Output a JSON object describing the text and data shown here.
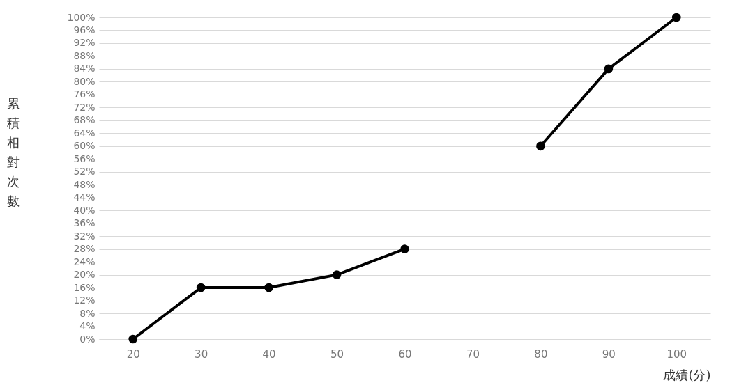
{
  "chart_data": {
    "type": "line",
    "xlabel": "成績(分)",
    "ylabel": "累積相對次數",
    "categories": [
      "20",
      "30",
      "40",
      "50",
      "60",
      "70",
      "80",
      "90",
      "100"
    ],
    "series": [
      {
        "color": "#000000",
        "values": [
          0,
          16,
          16,
          20,
          28,
          null,
          60,
          84,
          100
        ]
      }
    ],
    "ylim": [
      0,
      100
    ],
    "yticks": [
      {
        "value": 0,
        "label": "0%"
      },
      {
        "value": 4,
        "label": "4%"
      },
      {
        "value": 8,
        "label": "8%"
      },
      {
        "value": 12,
        "label": "12%"
      },
      {
        "value": 16,
        "label": "16%"
      },
      {
        "value": 20,
        "label": "20%"
      },
      {
        "value": 24,
        "label": "24%"
      },
      {
        "value": 28,
        "label": "28%"
      },
      {
        "value": 32,
        "label": "32%"
      },
      {
        "value": 36,
        "label": "36%"
      },
      {
        "value": 40,
        "label": "40%"
      },
      {
        "value": 44,
        "label": "44%"
      },
      {
        "value": 48,
        "label": "48%"
      },
      {
        "value": 52,
        "label": "52%"
      },
      {
        "value": 56,
        "label": "56%"
      },
      {
        "value": 60,
        "label": "60%"
      },
      {
        "value": 64,
        "label": "64%"
      },
      {
        "value": 68,
        "label": "68%"
      },
      {
        "value": 72,
        "label": "72%"
      },
      {
        "value": 76,
        "label": "76%"
      },
      {
        "value": 80,
        "label": "80%"
      },
      {
        "value": 84,
        "label": "84%"
      },
      {
        "value": 88,
        "label": "88%"
      },
      {
        "value": 92,
        "label": "92%"
      },
      {
        "value": 96,
        "label": "96%"
      },
      {
        "value": 100,
        "label": "100%"
      }
    ],
    "grid": "y",
    "marker": "circle",
    "line_style": "solid",
    "legend": false
  }
}
